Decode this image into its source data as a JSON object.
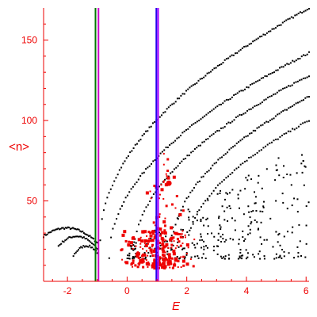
{
  "chart_data": {
    "type": "scatter",
    "title": "",
    "xlabel": "E",
    "ylabel": "<n>",
    "xlim": [
      -2.8,
      6.1
    ],
    "ylim": [
      0,
      170
    ],
    "x_ticks": [
      -2,
      0,
      2,
      4,
      6
    ],
    "y_ticks": [
      50,
      100,
      150
    ],
    "x_tick_labels": [
      "-2",
      "0",
      "2",
      "4",
      "6"
    ],
    "y_tick_labels": [
      "50",
      "100",
      "150"
    ],
    "grid": false,
    "legend": "none",
    "colors": {
      "axis": "#ee0000",
      "black_points": "#000000",
      "red_points": "#ee0000",
      "green_line": "#007700",
      "magenta_line": "#cc00cc",
      "blue_line": "#2200ee",
      "purple_line": "#aa00ff"
    },
    "vertical_lines": [
      {
        "x": -1.06,
        "color": "#007700"
      },
      {
        "x": -0.96,
        "color": "#cc00cc"
      },
      {
        "x": 0.98,
        "color": "#2200ee"
      },
      {
        "x": 1.04,
        "color": "#aa00ff"
      }
    ],
    "series": [
      {
        "color": "#000000",
        "marker": "dot",
        "bands": [
          {
            "x": [
              -2.8,
              -1.0
            ],
            "curve": "arc",
            "y_start": 28,
            "y_peak": 33,
            "y_end": 24,
            "count": 45
          },
          {
            "x": [
              -2.3,
              -1.0
            ],
            "curve": "arc",
            "y_start": 22,
            "y_peak": 28,
            "y_end": 20,
            "count": 30
          },
          {
            "x": [
              -1.8,
              -1.0
            ],
            "curve": "arc",
            "y_start": 16,
            "y_peak": 22,
            "y_end": 18,
            "count": 20
          },
          {
            "x": [
              -0.9,
              6.1
            ],
            "curve": "sqrt",
            "y_start": 25,
            "y_end": 170,
            "count": 120
          },
          {
            "x": [
              -0.6,
              6.1
            ],
            "curve": "sqrt",
            "y_start": 15,
            "y_end": 142,
            "count": 110
          },
          {
            "x": [
              0.2,
              6.1
            ],
            "curve": "sqrt",
            "y_start": 15,
            "y_end": 128,
            "count": 95
          },
          {
            "x": [
              1.5,
              6.1
            ],
            "curve": "sqrt",
            "y_start": 20,
            "y_end": 115,
            "count": 75
          },
          {
            "x": [
              2.0,
              6.1
            ],
            "curve": "sqrt",
            "y_start": 18,
            "y_end": 100,
            "count": 60
          }
        ],
        "scatter_region": {
          "x": [
            0.0,
            6.1
          ],
          "y_min": 14,
          "y_max": 90,
          "count": 320
        }
      },
      {
        "color": "#ee0000",
        "marker": "square",
        "clusters": [
          {
            "x": [
              -0.4,
              2.3
            ],
            "y": [
              8,
              32
            ],
            "count": 210
          },
          {
            "x": [
              0.5,
              2.0
            ],
            "y": [
              28,
              65
            ],
            "count": 35
          },
          {
            "x": [
              1.0,
              1.5
            ],
            "y": [
              60,
              85
            ],
            "count": 7
          }
        ]
      }
    ]
  }
}
